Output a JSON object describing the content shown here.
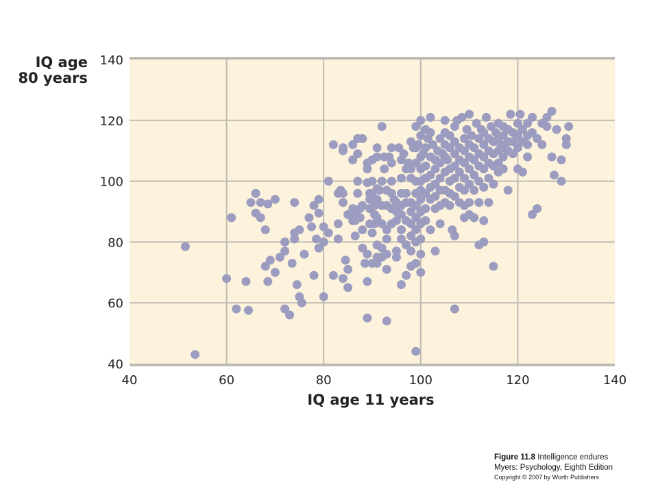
{
  "chart_data": {
    "type": "scatter",
    "title": "",
    "xlabel": "IQ age 11 years",
    "ylabel_lines": [
      "IQ age",
      "80 years"
    ],
    "xlim": [
      40,
      140
    ],
    "ylim": [
      40,
      140
    ],
    "xticks": [
      40,
      60,
      80,
      100,
      120,
      140
    ],
    "yticks": [
      40,
      60,
      80,
      100,
      120,
      140
    ],
    "grid": true,
    "colors": {
      "point": "#9b9cbf",
      "plot_background": "#fdf3dd",
      "grid": "#bdbab2",
      "axis": "#bdbab2"
    },
    "points": [
      [
        51.5,
        78.5
      ],
      [
        53.5,
        43
      ],
      [
        60,
        68
      ],
      [
        61,
        88
      ],
      [
        62,
        58
      ],
      [
        64,
        67
      ],
      [
        64.5,
        57.5
      ],
      [
        65,
        93
      ],
      [
        66,
        96
      ],
      [
        66,
        89.5
      ],
      [
        67,
        88
      ],
      [
        67,
        93
      ],
      [
        68,
        84
      ],
      [
        68,
        72
      ],
      [
        68.5,
        67
      ],
      [
        68.5,
        92.5
      ],
      [
        69,
        74
      ],
      [
        70,
        70
      ],
      [
        70,
        94
      ],
      [
        71,
        75
      ],
      [
        72,
        80
      ],
      [
        72,
        77
      ],
      [
        72,
        58
      ],
      [
        73,
        56
      ],
      [
        73.5,
        73
      ],
      [
        74,
        83
      ],
      [
        74,
        81
      ],
      [
        74,
        93
      ],
      [
        74.5,
        66
      ],
      [
        75,
        84
      ],
      [
        75,
        62
      ],
      [
        75.5,
        60
      ],
      [
        76,
        76
      ],
      [
        77,
        88
      ],
      [
        77.5,
        85
      ],
      [
        78,
        69
      ],
      [
        78,
        92
      ],
      [
        78.5,
        81
      ],
      [
        79,
        94
      ],
      [
        79,
        89.5
      ],
      [
        79,
        78
      ],
      [
        80,
        62
      ],
      [
        80,
        80
      ],
      [
        80,
        85
      ],
      [
        81,
        83
      ],
      [
        81,
        100
      ],
      [
        82,
        112
      ],
      [
        82,
        69
      ],
      [
        83,
        81
      ],
      [
        83,
        86
      ],
      [
        83,
        96
      ],
      [
        83.5,
        97
      ],
      [
        84,
        110
      ],
      [
        84,
        111
      ],
      [
        84,
        96
      ],
      [
        84,
        93
      ],
      [
        84,
        68
      ],
      [
        84.5,
        74
      ],
      [
        85,
        71
      ],
      [
        85,
        65
      ],
      [
        85,
        89
      ],
      [
        86,
        87
      ],
      [
        86,
        91
      ],
      [
        86,
        112
      ],
      [
        86,
        107
      ],
      [
        86.5,
        89
      ],
      [
        86.5,
        82
      ],
      [
        86.5,
        87
      ],
      [
        87,
        114
      ],
      [
        87,
        109
      ],
      [
        87,
        100
      ],
      [
        87,
        96
      ],
      [
        87.5,
        91
      ],
      [
        87.5,
        88
      ],
      [
        88,
        114
      ],
      [
        88,
        78
      ],
      [
        88,
        84
      ],
      [
        88,
        92
      ],
      [
        88.5,
        73
      ],
      [
        89,
        76
      ],
      [
        89,
        67
      ],
      [
        89,
        55
      ],
      [
        89,
        106
      ],
      [
        89,
        104
      ],
      [
        89,
        99.5
      ],
      [
        89.5,
        96
      ],
      [
        89.5,
        94
      ],
      [
        89.5,
        91
      ],
      [
        89.5,
        86
      ],
      [
        90,
        83
      ],
      [
        90,
        73
      ],
      [
        90,
        100
      ],
      [
        90,
        107
      ],
      [
        90,
        96
      ],
      [
        90.5,
        92
      ],
      [
        90.5,
        89
      ],
      [
        90.5,
        86
      ],
      [
        91,
        88
      ],
      [
        91,
        79
      ],
      [
        91,
        75
      ],
      [
        91,
        73
      ],
      [
        91,
        111
      ],
      [
        91,
        108
      ],
      [
        91,
        97.5
      ],
      [
        91,
        94
      ],
      [
        91.5,
        97
      ],
      [
        92,
        92
      ],
      [
        92,
        100
      ],
      [
        92,
        86
      ],
      [
        92,
        78
      ],
      [
        92,
        75
      ],
      [
        92,
        118
      ],
      [
        92.5,
        108
      ],
      [
        92.5,
        104
      ],
      [
        93,
        97
      ],
      [
        93,
        92
      ],
      [
        93,
        84
      ],
      [
        93,
        81
      ],
      [
        93,
        76
      ],
      [
        93,
        71
      ],
      [
        93,
        54
      ],
      [
        93.5,
        108
      ],
      [
        94,
        111
      ],
      [
        94,
        106
      ],
      [
        94,
        100
      ],
      [
        94,
        96
      ],
      [
        94,
        91
      ],
      [
        94,
        86
      ],
      [
        94.5,
        94
      ],
      [
        95,
        93
      ],
      [
        95,
        90
      ],
      [
        95,
        87
      ],
      [
        95,
        75
      ],
      [
        95,
        77
      ],
      [
        95.5,
        111
      ],
      [
        96,
        107
      ],
      [
        96,
        101
      ],
      [
        96,
        96
      ],
      [
        96,
        92
      ],
      [
        96,
        89
      ],
      [
        96,
        84
      ],
      [
        96,
        81
      ],
      [
        96,
        66
      ],
      [
        96.5,
        109
      ],
      [
        97,
        104
      ],
      [
        97,
        96
      ],
      [
        97,
        93
      ],
      [
        97,
        87
      ],
      [
        97,
        79
      ],
      [
        97,
        69
      ],
      [
        97.5,
        106
      ],
      [
        98,
        113
      ],
      [
        98,
        104
      ],
      [
        98,
        101
      ],
      [
        98,
        93
      ],
      [
        98,
        90
      ],
      [
        98,
        86
      ],
      [
        98,
        82
      ],
      [
        98,
        77
      ],
      [
        98,
        72
      ],
      [
        98.5,
        111
      ],
      [
        99,
        118
      ],
      [
        99,
        111
      ],
      [
        99,
        106
      ],
      [
        99,
        100
      ],
      [
        99,
        96
      ],
      [
        99,
        92
      ],
      [
        99,
        88
      ],
      [
        99,
        84
      ],
      [
        99,
        80
      ],
      [
        99,
        73
      ],
      [
        99,
        44
      ],
      [
        99.5,
        112
      ],
      [
        100,
        115
      ],
      [
        100,
        108
      ],
      [
        100,
        104
      ],
      [
        100,
        100
      ],
      [
        100,
        97
      ],
      [
        100,
        94
      ],
      [
        100,
        90
      ],
      [
        100,
        86
      ],
      [
        100,
        81
      ],
      [
        100,
        76
      ],
      [
        100,
        70
      ],
      [
        100,
        120
      ],
      [
        100.5,
        109
      ],
      [
        101,
        117
      ],
      [
        101,
        111
      ],
      [
        101,
        105
      ],
      [
        101,
        101
      ],
      [
        101,
        96
      ],
      [
        101,
        91
      ],
      [
        101,
        87
      ],
      [
        101.5,
        114
      ],
      [
        102,
        108
      ],
      [
        102,
        102
      ],
      [
        102,
        98
      ],
      [
        102,
        94
      ],
      [
        102,
        116
      ],
      [
        102,
        121
      ],
      [
        102,
        84
      ],
      [
        102.5,
        112
      ],
      [
        103,
        107
      ],
      [
        103,
        104
      ],
      [
        103,
        99
      ],
      [
        103,
        95
      ],
      [
        103,
        91
      ],
      [
        103,
        77
      ],
      [
        103.5,
        110
      ],
      [
        104,
        114
      ],
      [
        104,
        106
      ],
      [
        104,
        101
      ],
      [
        104,
        97
      ],
      [
        104,
        92
      ],
      [
        104,
        86
      ],
      [
        104.5,
        109
      ],
      [
        105,
        116
      ],
      [
        105,
        112
      ],
      [
        105,
        108
      ],
      [
        105,
        103
      ],
      [
        105,
        97
      ],
      [
        105,
        93
      ],
      [
        105,
        120
      ],
      [
        105.5,
        107
      ],
      [
        106,
        115
      ],
      [
        106,
        111
      ],
      [
        106,
        104
      ],
      [
        106,
        100
      ],
      [
        106,
        96
      ],
      [
        106,
        92
      ],
      [
        106.5,
        84
      ],
      [
        107,
        118
      ],
      [
        107,
        113
      ],
      [
        107,
        109
      ],
      [
        107,
        105
      ],
      [
        107,
        101
      ],
      [
        107,
        95
      ],
      [
        107,
        58
      ],
      [
        107,
        82
      ],
      [
        107.5,
        120
      ],
      [
        108,
        111
      ],
      [
        108,
        107
      ],
      [
        108,
        103
      ],
      [
        108,
        98
      ],
      [
        108,
        93
      ],
      [
        108.5,
        121
      ],
      [
        109,
        114
      ],
      [
        109,
        110
      ],
      [
        109,
        106
      ],
      [
        109,
        101
      ],
      [
        109,
        97
      ],
      [
        109,
        92
      ],
      [
        109,
        88
      ],
      [
        109.5,
        117
      ],
      [
        110,
        112
      ],
      [
        110,
        108
      ],
      [
        110,
        104
      ],
      [
        110,
        99
      ],
      [
        110,
        93
      ],
      [
        110,
        89
      ],
      [
        110,
        122
      ],
      [
        110.5,
        115
      ],
      [
        111,
        111
      ],
      [
        111,
        107
      ],
      [
        111,
        102
      ],
      [
        111,
        97
      ],
      [
        111,
        88
      ],
      [
        111.5,
        119
      ],
      [
        112,
        114
      ],
      [
        112,
        109
      ],
      [
        112,
        105
      ],
      [
        112,
        100
      ],
      [
        112,
        93
      ],
      [
        112,
        79
      ],
      [
        112.5,
        117
      ],
      [
        113,
        112
      ],
      [
        113,
        108
      ],
      [
        113,
        104
      ],
      [
        113,
        98
      ],
      [
        113,
        87
      ],
      [
        113,
        80
      ],
      [
        113,
        116
      ],
      [
        113.5,
        121
      ],
      [
        114,
        114
      ],
      [
        114,
        110
      ],
      [
        114,
        106
      ],
      [
        114,
        101
      ],
      [
        114,
        93
      ],
      [
        114.5,
        118
      ],
      [
        115,
        113
      ],
      [
        115,
        109
      ],
      [
        115,
        105
      ],
      [
        115,
        99
      ],
      [
        115,
        72
      ],
      [
        115.5,
        116
      ],
      [
        116,
        119
      ],
      [
        116,
        114
      ],
      [
        116,
        110
      ],
      [
        116,
        106
      ],
      [
        116,
        103
      ],
      [
        116.5,
        112
      ],
      [
        117,
        118
      ],
      [
        117,
        115
      ],
      [
        117,
        111
      ],
      [
        117,
        108
      ],
      [
        117,
        104
      ],
      [
        118,
        117
      ],
      [
        118,
        113
      ],
      [
        118,
        110
      ],
      [
        118,
        97
      ],
      [
        118.5,
        122
      ],
      [
        119,
        116
      ],
      [
        119,
        113
      ],
      [
        119,
        109
      ],
      [
        120,
        119
      ],
      [
        120,
        115
      ],
      [
        120,
        111
      ],
      [
        120,
        104
      ],
      [
        120.5,
        122
      ],
      [
        121,
        117
      ],
      [
        121,
        113
      ],
      [
        121,
        103
      ],
      [
        122,
        119
      ],
      [
        122,
        115
      ],
      [
        122,
        112
      ],
      [
        122,
        108
      ],
      [
        123,
        121
      ],
      [
        123,
        116
      ],
      [
        123,
        89
      ],
      [
        124,
        114
      ],
      [
        124,
        91
      ],
      [
        125,
        112
      ],
      [
        125,
        119
      ],
      [
        126,
        118
      ],
      [
        126,
        121
      ],
      [
        127,
        123
      ],
      [
        127,
        108
      ],
      [
        127.5,
        102
      ],
      [
        128,
        117
      ],
      [
        129,
        107
      ],
      [
        129,
        100
      ],
      [
        130,
        114
      ],
      [
        130,
        112
      ],
      [
        130.5,
        118
      ]
    ]
  },
  "caption": {
    "figure_label": "Figure 11.8",
    "figure_title": "Intelligence endures",
    "source": "Myers: Psychology, Eighth Edition",
    "copyright": "Copyright © 2007 by Worth Publishers"
  }
}
